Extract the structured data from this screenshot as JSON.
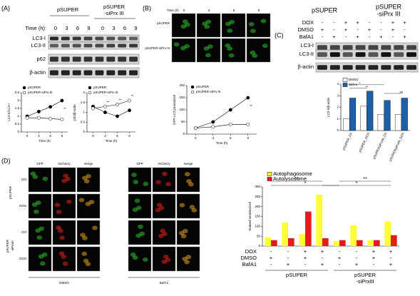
{
  "figure": {
    "panel_labels": [
      "(A)",
      "(B)",
      "(C)",
      "(D)"
    ],
    "blot_a": {
      "group1": "pSUPER",
      "group2": [
        "pSUPER",
        "-siPrx III"
      ],
      "time_label": "Time (h):",
      "times": [
        0,
        3,
        6,
        9,
        0,
        3,
        6,
        9
      ],
      "rows": [
        "LC3-I",
        "LC3-II",
        "p62",
        "β-actin"
      ]
    },
    "images_b": {
      "time_label": "Time (h)",
      "times": [
        0,
        3,
        6,
        9
      ],
      "rows": [
        "pSUPER",
        "pSUPER-siPrx III"
      ]
    },
    "blot_c": {
      "group1": "pSUPER",
      "group2": [
        "pSUPER",
        "-siPrx III"
      ],
      "conditions": [
        {
          "name": "DOX",
          "signs": [
            "-",
            "-",
            "+",
            "+",
            "-",
            "-",
            "+",
            "+"
          ]
        },
        {
          "name": "DMSO",
          "signs": [
            "+",
            "-",
            "+",
            "-",
            "+",
            "-",
            "+",
            "-"
          ]
        },
        {
          "name": "BafA1",
          "signs": [
            "-",
            "+",
            "-",
            "+",
            "-",
            "+",
            "-",
            "+"
          ]
        }
      ],
      "rows": [
        "LC3-I",
        "LC3-II",
        "β-actin"
      ]
    },
    "images_d": {
      "channels": [
        "GFP",
        "mCherry",
        "merge"
      ],
      "groups": [
        "pSUPER",
        [
          "pSUPER",
          "-siPrxIII"
        ]
      ],
      "rows": [
        "Ctrl",
        "DOX",
        "Ctrl",
        "DOX"
      ],
      "treatments": [
        "DMSO",
        "BafA1"
      ]
    }
  },
  "chart_data": [
    {
      "type": "line",
      "y_label": "LC3-II/LC3-I",
      "x_label": "Time (h)",
      "x": [
        0,
        3,
        6,
        9
      ],
      "xlim": [
        -1.5,
        10.5
      ],
      "xticks": [
        0,
        3,
        6,
        9
      ],
      "ylim": [
        0,
        2.5
      ],
      "yticks": [
        0,
        0.5,
        1,
        1.5,
        2,
        2.5
      ],
      "series": [
        {
          "name": "pSUPER",
          "color": "#000000",
          "values": [
            1.0,
            1.3,
            1.6,
            2.0
          ]
        },
        {
          "name": "pSUPER-siPrx III",
          "color": "#ffffff",
          "values": [
            0.9,
            0.9,
            0.85,
            0.8
          ]
        }
      ],
      "significance": [
        null,
        null,
        null,
        "**"
      ]
    },
    {
      "type": "line",
      "y_label": "p62/β-actin",
      "x_label": "Time (h)",
      "x": [
        0,
        3,
        6,
        9
      ],
      "xlim": [
        -1.5,
        10.5
      ],
      "xticks": [
        0,
        3,
        6,
        9
      ],
      "ylim": [
        0,
        2
      ],
      "yticks": [
        0,
        0.5,
        1,
        1.5,
        2
      ],
      "series": [
        {
          "name": "pSUPER",
          "color": "#000000",
          "values": [
            1.3,
            1.0,
            0.8,
            1.1
          ]
        },
        {
          "name": "pSUPER-siPrx III",
          "color": "#ffffff",
          "values": [
            1.2,
            1.3,
            1.4,
            1.6
          ]
        }
      ],
      "significance": [
        null,
        "**",
        "**",
        "**"
      ]
    },
    {
      "type": "line",
      "y_label": "GFP-LC3 puncta/cell",
      "x_label": "Time (h)",
      "x": [
        0,
        3,
        6,
        9
      ],
      "xlim": [
        -1.5,
        10.5
      ],
      "xticks": [
        0,
        3,
        6,
        9
      ],
      "ylim": [
        0,
        200
      ],
      "yticks": [
        0,
        50,
        100,
        150,
        200
      ],
      "series": [
        {
          "name": "pSUPER",
          "color": "#000000",
          "values": [
            25,
            50,
            100,
            150
          ]
        },
        {
          "name": "pSUPER-siPrx III",
          "color": "#ffffff",
          "values": [
            25,
            30,
            40,
            40
          ]
        }
      ],
      "significance": [
        null,
        null,
        null,
        "**"
      ]
    },
    {
      "type": "bar",
      "y_label": "LC3-II/β-actin",
      "categories": [
        "pSUPER_DX",
        "pSUPER_DOX",
        "pSUPERsiPrxIII_DX",
        "pSUPERsiPrxIII_DOX"
      ],
      "ylim": [
        0,
        4
      ],
      "yticks": [
        0,
        1,
        2,
        3,
        4
      ],
      "series": [
        {
          "name": "DMSO",
          "color": "#ffffff",
          "values": [
            1.0,
            2.1,
            1.4,
            1.4
          ]
        },
        {
          "name": "BafA1",
          "color": "#1f5fa8",
          "values": [
            2.8,
            3.4,
            2.6,
            2.8
          ]
        }
      ],
      "annotations": [
        "**",
        "*",
        "ns"
      ]
    },
    {
      "type": "bar",
      "y_label": "Stained vesicles/cell",
      "ylim": [
        0,
        300
      ],
      "yticks": [
        0,
        50,
        100,
        150,
        200,
        250,
        300
      ],
      "series": [
        {
          "name": "Autophagosome",
          "color": "#ffff33",
          "values": [
            45,
            120,
            60,
            260,
            25,
            105,
            30,
            125
          ]
        },
        {
          "name": "Autolysosome",
          "color": "#e41a1c",
          "values": [
            30,
            40,
            175,
            40,
            30,
            30,
            30,
            55
          ]
        }
      ],
      "table": [
        {
          "name": "DOX",
          "signs": [
            "-",
            "-",
            "+",
            "+",
            "-",
            "-",
            "+",
            "+"
          ]
        },
        {
          "name": "DMSO",
          "signs": [
            "+",
            "-",
            "+",
            "-",
            "+",
            "-",
            "+",
            "-"
          ]
        },
        {
          "name": "BafA1",
          "signs": [
            "-",
            "+",
            "-",
            "+",
            "-",
            "+",
            "-",
            "+"
          ]
        }
      ],
      "groups": [
        "pSUPER",
        [
          "pSUPER",
          "-siPrxIII"
        ]
      ],
      "annotations": [
        "**",
        "**",
        "*",
        "*"
      ]
    }
  ]
}
